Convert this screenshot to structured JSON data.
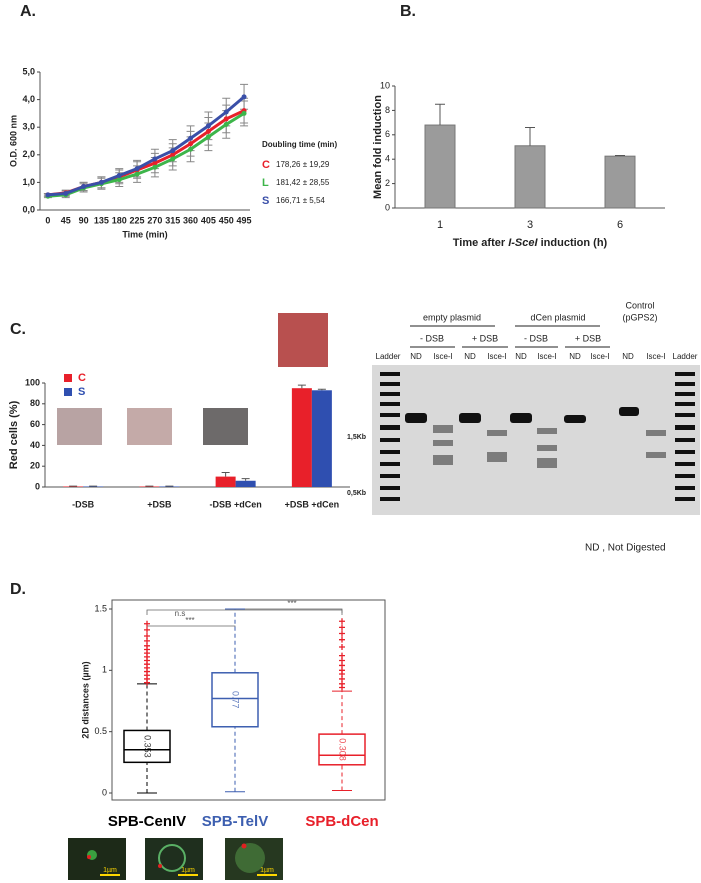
{
  "panel_labels": [
    "A.",
    "B.",
    "C.",
    "D."
  ],
  "chart_data": [
    {
      "type": "line",
      "xlabel": "Time (min)",
      "ylabel": "O.D. 600 nm",
      "x": [
        0,
        45,
        90,
        135,
        180,
        225,
        270,
        315,
        360,
        405,
        450,
        495
      ],
      "xlim": [
        -20,
        510
      ],
      "xticks": [
        0,
        45,
        90,
        135,
        180,
        225,
        270,
        315,
        360,
        405,
        450,
        495
      ],
      "ylim": [
        0,
        5
      ],
      "yticks": [
        {
          "value": 0,
          "label": "0,0"
        },
        {
          "value": 1,
          "label": "1,0"
        },
        {
          "value": 2,
          "label": "2,0"
        },
        {
          "value": 3,
          "label": "3,0"
        },
        {
          "value": 4,
          "label": "4,0"
        },
        {
          "value": 5,
          "label": "5,0"
        }
      ],
      "legend_title": "Doubling time (min)",
      "series": [
        {
          "name": "C",
          "color": "#e8202a",
          "doubling": "178,26 ± 19,29",
          "values": [
            0.55,
            0.62,
            0.85,
            1.0,
            1.2,
            1.45,
            1.7,
            2.0,
            2.4,
            2.85,
            3.3,
            3.6
          ],
          "errors": [
            0.05,
            0.1,
            0.15,
            0.2,
            0.25,
            0.3,
            0.35,
            0.4,
            0.45,
            0.5,
            0.5,
            0.45
          ]
        },
        {
          "name": "L",
          "color": "#3db54a",
          "doubling": "181,42 ± 28,55",
          "values": [
            0.5,
            0.55,
            0.8,
            0.95,
            1.1,
            1.3,
            1.55,
            1.85,
            2.2,
            2.65,
            3.1,
            3.5
          ],
          "errors": [
            0.05,
            0.1,
            0.15,
            0.2,
            0.25,
            0.3,
            0.35,
            0.4,
            0.45,
            0.5,
            0.5,
            0.45
          ]
        },
        {
          "name": "S",
          "color": "#3a4fa8",
          "doubling": "166,71 ± 5,54",
          "values": [
            0.55,
            0.6,
            0.85,
            1.0,
            1.25,
            1.5,
            1.85,
            2.15,
            2.6,
            3.05,
            3.55,
            4.1
          ],
          "errors": [
            0.05,
            0.1,
            0.15,
            0.2,
            0.25,
            0.3,
            0.35,
            0.4,
            0.45,
            0.5,
            0.5,
            0.45
          ]
        }
      ]
    },
    {
      "type": "bar",
      "ylabel": "Mean fold induction",
      "xlabel": [
        "Time after ",
        "I-SceI",
        " induction (h)"
      ],
      "categories": [
        "1",
        "3",
        "6"
      ],
      "values": [
        6.8,
        5.1,
        4.25
      ],
      "errors": [
        1.7,
        1.5,
        0.05
      ],
      "color": "#9b9b9b",
      "ylim": [
        0,
        10
      ],
      "yticks": [
        0,
        2,
        4,
        6,
        8,
        10
      ]
    },
    {
      "type": "grouped-bar",
      "ylabel": "Red cells (%)",
      "categories": [
        "-DSB",
        "+DSB",
        "-DSB +dCen",
        "+DSB +dCen"
      ],
      "ylim": [
        0,
        100
      ],
      "yticks": [
        0,
        20,
        40,
        60,
        80,
        100
      ],
      "series": [
        {
          "name": "C",
          "color": "#e8202a",
          "values": [
            0.5,
            0.5,
            10,
            95
          ],
          "errors": [
            0.3,
            0.3,
            4,
            3
          ]
        },
        {
          "name": "S",
          "color": "#2f4fb0",
          "values": [
            0.5,
            0.5,
            6,
            93
          ],
          "errors": [
            0.3,
            0.3,
            2,
            1
          ]
        }
      ]
    },
    {
      "type": "box",
      "ylabel": "2D distances (µm)",
      "ylim": [
        0,
        1.5
      ],
      "yticks": [
        0,
        0.5,
        1,
        1.5
      ],
      "annotations": [
        "***",
        "n.s",
        "***"
      ],
      "series": [
        {
          "name": "SPB-CenIV",
          "color": "#000000",
          "min": 0.0,
          "q1": 0.25,
          "median": 0.353,
          "median_label": "0.353",
          "q3": 0.51,
          "max": 0.89,
          "outliers": [
            0.9,
            0.93,
            0.96,
            0.99,
            1.02,
            1.05,
            1.08,
            1.11,
            1.14,
            1.17,
            1.2,
            1.24,
            1.28,
            1.33,
            1.38
          ]
        },
        {
          "name": "SPB-TelV",
          "color": "#3d5fb0",
          "min": 0.01,
          "q1": 0.54,
          "median": 0.77,
          "median_label": "0.77",
          "q3": 0.98,
          "max": 1.5,
          "outliers": []
        },
        {
          "name": "SPB-dCen",
          "color": "#e8202a",
          "min": 0.02,
          "q1": 0.23,
          "median": 0.308,
          "median_label": "0.308",
          "q3": 0.48,
          "max": 0.83,
          "outliers": [
            0.86,
            0.89,
            0.93,
            0.97,
            1.0,
            1.04,
            1.08,
            1.12,
            1.19,
            1.25,
            1.3,
            1.35,
            1.4
          ]
        }
      ]
    }
  ],
  "gel": {
    "groups": [
      "empty plasmid",
      "dCen plasmid"
    ],
    "control": [
      "Control",
      "(pGPS2)"
    ],
    "conditions": [
      "- DSB",
      "+ DSB",
      "- DSB",
      "+ DSB"
    ],
    "lanes": [
      "Ladder",
      "ND",
      "Isce-I",
      "ND",
      "Isce-I",
      "ND",
      "Isce-I",
      "ND",
      "Isce-I",
      "ND",
      "Isce-I",
      "Ladder"
    ],
    "markers": [
      "1,5Kb",
      "0,5Kb"
    ],
    "note": "ND , Not Digested"
  },
  "microscopy": {
    "scale_labels": [
      "1µm",
      "1µm",
      "1µm"
    ]
  }
}
